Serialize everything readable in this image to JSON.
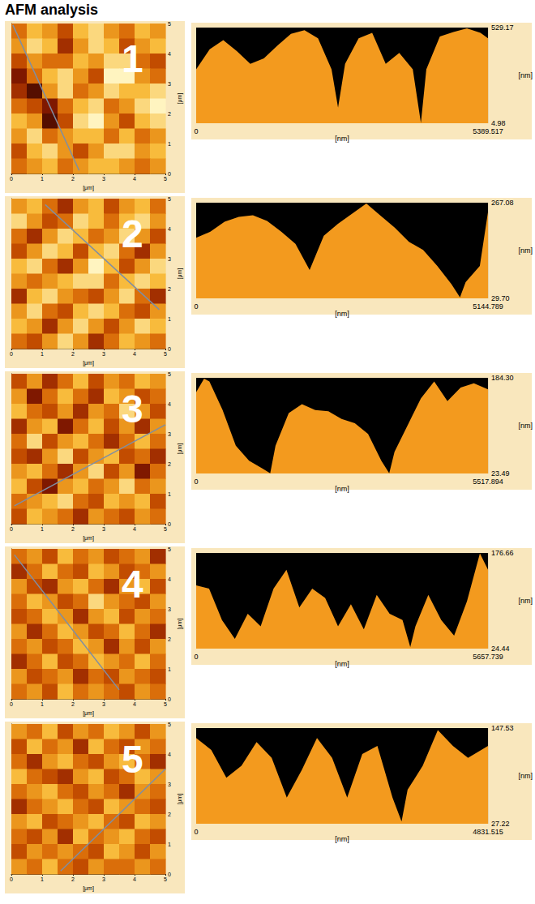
{
  "title": "AFM analysis",
  "chart_data": [
    {
      "type": "heatmap",
      "panel": "1",
      "x_label": "[μm]",
      "y_label": "[μm]",
      "xlim": [
        0,
        5
      ],
      "ylim": [
        0,
        5
      ],
      "xticks": [
        0,
        1,
        2,
        3,
        4,
        5
      ],
      "yticks": [
        0,
        1,
        2,
        3,
        4,
        5
      ],
      "color_range": [
        0,
        9
      ],
      "cells": [
        [
          5,
          7,
          6,
          4,
          7,
          8,
          6,
          5,
          7,
          6
        ],
        [
          6,
          8,
          7,
          3,
          6,
          8,
          7,
          4,
          6,
          7
        ],
        [
          4,
          6,
          5,
          5,
          7,
          6,
          8,
          8,
          5,
          4
        ],
        [
          2,
          5,
          7,
          8,
          6,
          4,
          9,
          9,
          6,
          5
        ],
        [
          3,
          1,
          6,
          8,
          5,
          6,
          8,
          7,
          7,
          8
        ],
        [
          5,
          4,
          2,
          5,
          7,
          8,
          5,
          6,
          8,
          9
        ],
        [
          7,
          6,
          1,
          4,
          8,
          9,
          6,
          4,
          7,
          8
        ],
        [
          6,
          8,
          5,
          6,
          7,
          7,
          5,
          7,
          5,
          6
        ],
        [
          4,
          7,
          8,
          6,
          4,
          6,
          8,
          8,
          6,
          7
        ],
        [
          5,
          6,
          7,
          5,
          6,
          7,
          7,
          6,
          5,
          6
        ]
      ],
      "scan_line": {
        "x": [
          0.05,
          2.2
        ],
        "y": [
          4.95,
          0.1
        ]
      }
    },
    {
      "type": "area",
      "x_label": "[nm]",
      "y_label": "[nm]",
      "color": "#f39a1e",
      "xlim": [
        0,
        5389.517
      ],
      "xticks": [
        0,
        5389.517
      ],
      "ylim": [
        4.98,
        529.17
      ],
      "yticks": [
        4.98,
        529.17
      ],
      "x": [
        0,
        250,
        500,
        750,
        1000,
        1250,
        1500,
        1750,
        2000,
        2250,
        2500,
        2620,
        2750,
        3000,
        3250,
        3500,
        3750,
        4000,
        4150,
        4250,
        4500,
        4750,
        5000,
        5250,
        5389.517
      ],
      "values": [
        300,
        410,
        460,
        400,
        330,
        360,
        430,
        495,
        515,
        470,
        300,
        90,
        330,
        470,
        500,
        330,
        390,
        300,
        6,
        300,
        480,
        505,
        525,
        500,
        470
      ]
    },
    {
      "type": "heatmap",
      "panel": "2",
      "x_label": "[μm]",
      "y_label": "[μm]",
      "xlim": [
        0,
        5
      ],
      "ylim": [
        0,
        5
      ],
      "xticks": [
        0,
        1,
        2,
        3,
        4,
        5
      ],
      "yticks": [
        0,
        1,
        2,
        3,
        4,
        5
      ],
      "color_range": [
        0,
        9
      ],
      "cells": [
        [
          6,
          7,
          5,
          3,
          6,
          7,
          4,
          6,
          7,
          5
        ],
        [
          8,
          6,
          4,
          5,
          8,
          7,
          5,
          7,
          8,
          6
        ],
        [
          5,
          3,
          6,
          8,
          7,
          5,
          6,
          8,
          6,
          4
        ],
        [
          4,
          6,
          8,
          7,
          4,
          7,
          8,
          5,
          3,
          6
        ],
        [
          7,
          8,
          5,
          3,
          6,
          9,
          7,
          4,
          6,
          8
        ],
        [
          6,
          5,
          6,
          7,
          8,
          8,
          5,
          7,
          8,
          7
        ],
        [
          3,
          7,
          8,
          6,
          5,
          4,
          6,
          8,
          5,
          3
        ],
        [
          6,
          8,
          5,
          4,
          7,
          8,
          7,
          5,
          4,
          6
        ],
        [
          7,
          6,
          3,
          6,
          8,
          6,
          4,
          6,
          8,
          7
        ],
        [
          5,
          4,
          6,
          8,
          6,
          3,
          5,
          7,
          6,
          5
        ]
      ],
      "scan_line": {
        "x": [
          1.1,
          4.8
        ],
        "y": [
          4.8,
          1.3
        ]
      }
    },
    {
      "type": "area",
      "x_label": "[nm]",
      "y_label": "[nm]",
      "color": "#f39a1e",
      "xlim": [
        0,
        5144.789
      ],
      "xticks": [
        0,
        5144.789
      ],
      "ylim": [
        29.7,
        267.08
      ],
      "yticks": [
        {
          "value": 29.7,
          "label": "29.70"
        },
        267.08
      ],
      "x": [
        0,
        250,
        500,
        750,
        1000,
        1250,
        1500,
        1750,
        2000,
        2250,
        2500,
        2750,
        3000,
        3250,
        3500,
        3750,
        4000,
        4250,
        4500,
        4650,
        4750,
        5000,
        5144.789
      ],
      "values": [
        180,
        195,
        220,
        232,
        236,
        222,
        195,
        165,
        100,
        185,
        215,
        240,
        265,
        235,
        205,
        170,
        150,
        110,
        65,
        32,
        70,
        110,
        245
      ]
    },
    {
      "type": "heatmap",
      "panel": "3",
      "x_label": "[μm]",
      "y_label": "[μm]",
      "xlim": [
        0,
        5
      ],
      "ylim": [
        0,
        5
      ],
      "xticks": [
        0,
        1,
        2,
        3,
        4,
        5
      ],
      "yticks": [
        0,
        1,
        2,
        3,
        4,
        5
      ],
      "color_range": [
        0,
        9
      ],
      "cells": [
        [
          4,
          6,
          3,
          5,
          7,
          4,
          6,
          5,
          7,
          6
        ],
        [
          6,
          2,
          5,
          7,
          5,
          3,
          7,
          6,
          4,
          5
        ],
        [
          7,
          5,
          4,
          6,
          3,
          6,
          5,
          8,
          6,
          4
        ],
        [
          3,
          6,
          7,
          2,
          5,
          7,
          4,
          6,
          3,
          6
        ],
        [
          5,
          8,
          4,
          6,
          7,
          5,
          3,
          5,
          7,
          5
        ],
        [
          4,
          3,
          6,
          8,
          4,
          6,
          7,
          4,
          5,
          3
        ],
        [
          6,
          7,
          5,
          3,
          6,
          8,
          4,
          6,
          2,
          5
        ],
        [
          7,
          4,
          2,
          6,
          7,
          5,
          6,
          8,
          5,
          6
        ],
        [
          5,
          6,
          7,
          8,
          5,
          4,
          7,
          6,
          7,
          4
        ],
        [
          4,
          7,
          6,
          5,
          3,
          6,
          5,
          4,
          6,
          5
        ]
      ],
      "scan_line": {
        "x": [
          0.1,
          5
        ],
        "y": [
          0.6,
          3.3
        ]
      }
    },
    {
      "type": "area",
      "x_label": "[nm]",
      "y_label": "[nm]",
      "color": "#f39a1e",
      "xlim": [
        0,
        5517.894
      ],
      "xticks": [
        0,
        5517.894
      ],
      "ylim": [
        23.49,
        184.3
      ],
      "yticks": [
        23.49,
        {
          "value": 184.3,
          "label": "184.30"
        }
      ],
      "x": [
        0,
        150,
        250,
        500,
        750,
        1000,
        1250,
        1400,
        1500,
        1750,
        2000,
        2250,
        2500,
        2750,
        3000,
        3250,
        3500,
        3650,
        3750,
        4000,
        4250,
        4500,
        4750,
        5000,
        5250,
        5517.894
      ],
      "values": [
        160,
        183,
        178,
        130,
        70,
        45,
        32,
        24,
        70,
        125,
        140,
        130,
        128,
        115,
        108,
        90,
        45,
        24,
        60,
        105,
        150,
        178,
        145,
        168,
        175,
        165
      ]
    },
    {
      "type": "heatmap",
      "panel": "4",
      "x_label": "[μm]",
      "y_label": "[μm]",
      "xlim": [
        0,
        5
      ],
      "ylim": [
        0,
        5
      ],
      "xticks": [
        0,
        1,
        2,
        3,
        4,
        5
      ],
      "yticks": [
        0,
        1,
        2,
        3,
        4,
        5
      ],
      "color_range": [
        0,
        9
      ],
      "cells": [
        [
          5,
          6,
          4,
          7,
          5,
          6,
          4,
          5,
          6,
          3
        ],
        [
          3,
          5,
          7,
          5,
          4,
          7,
          6,
          4,
          5,
          6
        ],
        [
          6,
          4,
          3,
          6,
          7,
          5,
          3,
          6,
          7,
          4
        ],
        [
          5,
          7,
          6,
          4,
          5,
          8,
          6,
          5,
          4,
          6
        ],
        [
          4,
          5,
          7,
          6,
          3,
          6,
          7,
          4,
          6,
          5
        ],
        [
          6,
          3,
          5,
          7,
          6,
          4,
          5,
          7,
          5,
          3
        ],
        [
          5,
          6,
          4,
          5,
          7,
          6,
          3,
          6,
          4,
          6
        ],
        [
          3,
          5,
          7,
          4,
          5,
          7,
          6,
          5,
          7,
          5
        ],
        [
          6,
          4,
          5,
          6,
          3,
          5,
          4,
          6,
          5,
          4
        ],
        [
          5,
          6,
          4,
          7,
          5,
          6,
          5,
          4,
          6,
          5
        ]
      ],
      "scan_line": {
        "x": [
          0.1,
          3.5
        ],
        "y": [
          4.8,
          0.3
        ]
      }
    },
    {
      "type": "area",
      "x_label": "[nm]",
      "y_label": "[nm]",
      "color": "#f39a1e",
      "xlim": [
        0,
        5657.739
      ],
      "xticks": [
        0,
        5657.739
      ],
      "ylim": [
        24.44,
        176.66
      ],
      "yticks": [
        24.44,
        176.66
      ],
      "x": [
        0,
        250,
        500,
        750,
        1000,
        1250,
        1500,
        1750,
        2000,
        2250,
        2500,
        2750,
        3000,
        3250,
        3500,
        3750,
        4000,
        4150,
        4250,
        4500,
        4750,
        5000,
        5250,
        5500,
        5657.739
      ],
      "values": [
        125,
        120,
        70,
        40,
        80,
        60,
        120,
        150,
        90,
        120,
        105,
        60,
        95,
        55,
        110,
        80,
        70,
        27,
        60,
        110,
        70,
        45,
        100,
        176,
        150
      ]
    },
    {
      "type": "heatmap",
      "panel": "5",
      "x_label": "[μm]",
      "y_label": "[μm]",
      "xlim": [
        0,
        5
      ],
      "ylim": [
        0,
        5
      ],
      "xticks": [
        0,
        1,
        2,
        3,
        4,
        5
      ],
      "yticks": [
        0,
        1,
        2,
        3,
        4,
        5
      ],
      "color_range": [
        0,
        9
      ],
      "cells": [
        [
          6,
          5,
          7,
          4,
          6,
          5,
          7,
          6,
          4,
          6
        ],
        [
          4,
          7,
          5,
          6,
          3,
          7,
          5,
          4,
          6,
          5
        ],
        [
          5,
          3,
          6,
          7,
          5,
          4,
          6,
          7,
          5,
          3
        ],
        [
          7,
          5,
          4,
          3,
          6,
          7,
          4,
          5,
          7,
          6
        ],
        [
          5,
          6,
          7,
          5,
          4,
          6,
          5,
          3,
          6,
          5
        ],
        [
          3,
          5,
          6,
          7,
          5,
          4,
          7,
          6,
          5,
          4
        ],
        [
          6,
          7,
          4,
          5,
          6,
          7,
          5,
          4,
          7,
          6
        ],
        [
          5,
          4,
          6,
          3,
          7,
          5,
          6,
          7,
          5,
          4
        ],
        [
          4,
          6,
          5,
          6,
          5,
          4,
          7,
          6,
          4,
          6
        ],
        [
          6,
          5,
          7,
          5,
          4,
          6,
          5,
          5,
          6,
          5
        ]
      ],
      "scan_line": {
        "x": [
          1.6,
          5
        ],
        "y": [
          0.1,
          3.5
        ]
      }
    },
    {
      "type": "area",
      "x_label": "[nm]",
      "y_label": "[nm]",
      "color": "#f39a1e",
      "xlim": [
        0,
        4831.515
      ],
      "xticks": [
        0,
        4831.515
      ],
      "ylim": [
        27.22,
        147.53
      ],
      "yticks": [
        27.22,
        147.53
      ],
      "x": [
        0,
        250,
        500,
        750,
        1000,
        1250,
        1500,
        1750,
        2000,
        2250,
        2500,
        2750,
        3000,
        3250,
        3400,
        3500,
        3750,
        4000,
        4250,
        4500,
        4831.515
      ],
      "values": [
        135,
        120,
        85,
        100,
        130,
        110,
        60,
        95,
        135,
        110,
        60,
        115,
        125,
        60,
        30,
        70,
        100,
        145,
        125,
        110,
        125
      ]
    }
  ]
}
